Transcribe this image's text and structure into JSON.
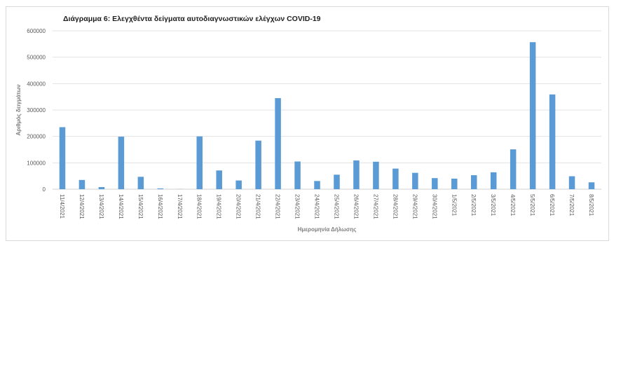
{
  "chart_data": {
    "type": "bar",
    "title": "Διάγραμμα 6: Ελεγχθέντα δείγματα αυτοδιαγνωστικών ελέγχων COVID-19",
    "xlabel": "Ημερομηνία Δήλωσης",
    "ylabel": "Αριθμός δειγμάτων",
    "ylim": [
      0,
      600000
    ],
    "yticks": [
      0,
      100000,
      200000,
      300000,
      400000,
      500000,
      600000
    ],
    "ytick_labels": [
      "0",
      "100000",
      "200000",
      "300000",
      "400000",
      "500000",
      "600000"
    ],
    "grid": true,
    "legend": "none",
    "bar_color": "#5b9bd5",
    "categories": [
      "11/4/2021",
      "12/4/2021",
      "13/4/2021",
      "14/4/2021",
      "15/4/2021",
      "16/4/2021",
      "17/4/2021",
      "18/4/2021",
      "19/4/2021",
      "20/4/2021",
      "21/4/2021",
      "22/4/2021",
      "23/4/2021",
      "24/4/2021",
      "25/4/2021",
      "26/4/2021",
      "27/4/2021",
      "28/4/2021",
      "29/4/2021",
      "30/4/2021",
      "1/5/2021",
      "2/5/2021",
      "3/5/2021",
      "4/5/2021",
      "5/5/2021",
      "6/5/2021",
      "7/5/2021",
      "8/5/2021"
    ],
    "values": [
      235000,
      35000,
      8000,
      199000,
      47000,
      3000,
      500,
      200000,
      71000,
      33000,
      184000,
      345000,
      105000,
      31000,
      55000,
      109000,
      104000,
      78000,
      62000,
      42000,
      40000,
      53000,
      64000,
      151000,
      557000,
      359000,
      49000,
      26000
    ]
  }
}
